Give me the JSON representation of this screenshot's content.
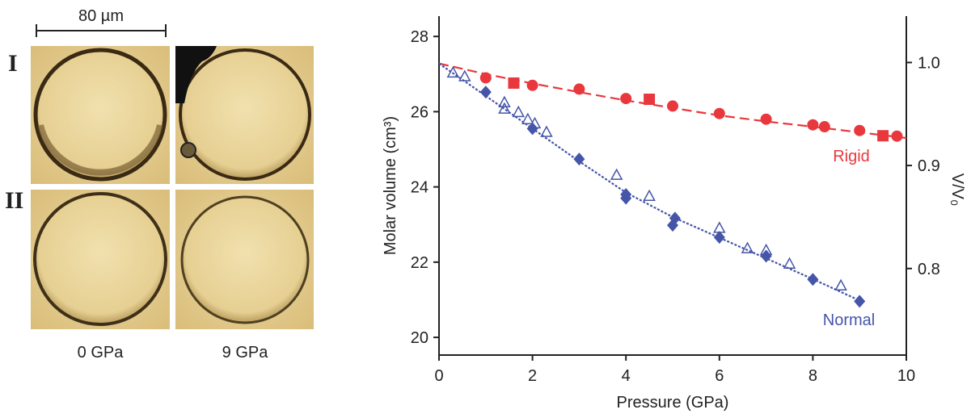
{
  "micrographs": {
    "scale_bar": "80 µm",
    "rows": [
      "I",
      "II"
    ],
    "columns": [
      "0 GPa",
      "9 GPa"
    ]
  },
  "chart_data": {
    "type": "scatter",
    "x_label": "Pressure (GPa)",
    "y_label": "Molar volume (cm³)",
    "y2_label": "V/V₀",
    "annotations": [
      "Rigid",
      "Normal"
    ],
    "xlim": [
      0,
      10
    ],
    "xticks": [
      0,
      2,
      4,
      6,
      8,
      10
    ],
    "ylim": [
      19.53,
      28.54
    ],
    "yticks": [
      20,
      22,
      24,
      26,
      28
    ],
    "y2lim": [
      0.716,
      1.045
    ],
    "y2ticks": [
      0.8,
      0.9,
      {
        "value": 1,
        "label": "1.0"
      }
    ],
    "series": [
      {
        "marker": "line-dashed",
        "color": "#e8383d",
        "x": [
          0,
          1,
          2,
          3,
          4,
          5,
          6,
          7,
          8,
          9,
          10
        ],
        "values": [
          27.28,
          27.0,
          26.75,
          26.52,
          26.3,
          26.1,
          25.9,
          25.74,
          25.6,
          25.45,
          25.3
        ]
      },
      {
        "marker": "line-dotted",
        "color": "#4555a8",
        "x": [
          0,
          1,
          2,
          3,
          4,
          5,
          6,
          7,
          8,
          9
        ],
        "values": [
          27.28,
          26.42,
          25.55,
          24.68,
          23.85,
          23.2,
          22.65,
          22.1,
          21.55,
          20.98
        ]
      },
      {
        "marker": "circle",
        "color": "#e8383d",
        "x": [
          1.0,
          2.0,
          3.0,
          4.0,
          5.0,
          6.0,
          7.0,
          8.0,
          8.25,
          9.0,
          9.8
        ],
        "values": [
          26.9,
          26.7,
          26.6,
          26.35,
          26.15,
          25.95,
          25.8,
          25.65,
          25.6,
          25.5,
          25.35
        ]
      },
      {
        "marker": "square",
        "color": "#e8383d",
        "x": [
          1.6,
          4.5,
          9.5
        ],
        "values": [
          26.76,
          26.33,
          25.36
        ]
      },
      {
        "marker": "diamond",
        "color": "#4555a8",
        "x": [
          1.0,
          2.0,
          3.0,
          4.0,
          4.0,
          5.05,
          5.0,
          6.0,
          7.0,
          8.0,
          9.0
        ],
        "values": [
          26.52,
          25.55,
          24.74,
          23.8,
          23.7,
          23.17,
          22.98,
          22.66,
          22.16,
          21.54,
          20.96
        ]
      },
      {
        "marker": "triangle-open",
        "color": "#4555a8",
        "x": [
          0.3,
          0.55,
          1.4,
          1.4,
          1.7,
          1.9,
          2.05,
          2.3,
          3.8,
          4.5,
          6.0,
          6.6,
          7.0,
          7.5,
          8.6
        ],
        "values": [
          27.03,
          26.93,
          26.24,
          26.07,
          25.98,
          25.79,
          25.68,
          25.45,
          24.31,
          23.75,
          22.9,
          22.36,
          22.31,
          21.95,
          21.37
        ]
      }
    ]
  }
}
